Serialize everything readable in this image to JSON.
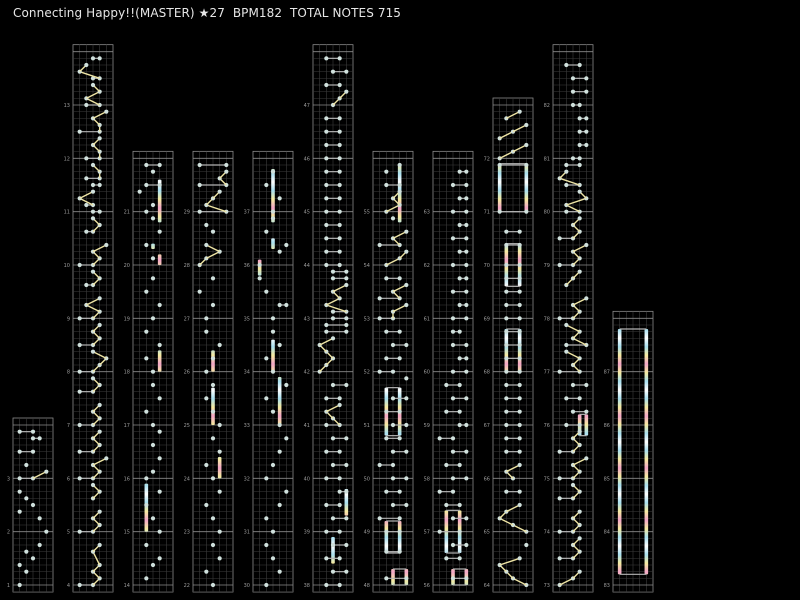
{
  "header": {
    "song": "Connecting Happy!!",
    "difficulty": "(MASTER)",
    "level": "★27",
    "bpm": "BPM182",
    "total_notes": "TOTAL NOTES 715"
  },
  "colors": {
    "background": "#000000",
    "grid": "#3c3c3c",
    "measure_line": "#8a8a8a",
    "note": "#cfe0dc",
    "double_line": "#b4b4b4",
    "slide_line": "#eee4a4",
    "hold_gradient": [
      "#f4a6c8",
      "#f6eba0",
      "#a8e0f0",
      "#ffffff"
    ]
  },
  "chart": {
    "lanes": 5,
    "columns": [
      {
        "first": 1,
        "last": 3
      },
      {
        "first": 4,
        "last": 13
      },
      {
        "first": 14,
        "last": 21
      },
      {
        "first": 22,
        "last": 29
      },
      {
        "first": 30,
        "last": 37
      },
      {
        "first": 38,
        "last": 47
      },
      {
        "first": 48,
        "last": 55
      },
      {
        "first": 56,
        "last": 63
      },
      {
        "first": 64,
        "last": 72
      },
      {
        "first": 73,
        "last": 82
      },
      {
        "first": 83,
        "last": 87
      }
    ],
    "measures": {
      "1": "1 . 2 1 3 2 4 .",
      "2": "5 . 4 1 3 2 1 .",
      "3": "13 ~5 2 . 13 . 34 13",
      "4": "13 ~4 ~3 ~4 . ~3 ~4 .",
      "5": "13 ~4 ~3 ~4 . 3 ~4 ~3",
      "6": "13 ~4 ~3 ~5 13 ~4 ~3 ~4",
      "7": "13 ~4 ~3 ~4 . 13 ~4 ~3",
      "8": "13 ~4 ~5 ~3 13 ~4 ~3 ~4",
      "9": "13 ~4 ~2 ~4 . 23 ~4 ~3",
      "10": "13 ~4 ~3 ~5 . 23 ~4 ~3",
      "11": "34 23 ~1 ~3 34 24 ~4 ~3",
      "12": "24 ~4 ~3 ~4 14 ~4 ~3 ~5",
      "13": "24 ~2 ~4 ~3 34 ~1 ~2 34",
      "14": ". 2 . 3 4 . 2 .",
      "15": "4 . 3 . 2 . 4 .",
      "16": "2 3 . 4 . 3 . 4",
      "17": "3 . 2 . 4 . 3 .",
      "18": "3 . 2 . 4 . 2 .",
      "19": "3 . 4 . 2 . 3 .",
      "20": ". 3 . 2 . 4 . 3",
      "21": "2 3 . 1 24 . 3 24",
      "22": "3 . 2 . 4 . 3 .",
      "23": "4 . 3 . 2 . 4 .",
      "24": "3 . 2 . 4 . 3 .",
      "25": "4 . 3 . 2 . 3 .",
      "26": "2 . 3 . 4 . 2 .",
      "27": "2 . 3 . 1 . 3 .",
      "28": "1 ~2 ~4 ~2 . 3 2 .",
      "29": "15 ~2 ~3 ~4 15 ~4 ~5 15",
      "30": "2 . 4 . 3 . 2 .",
      "31": "3 . 2 . 4 . 5 .",
      "32": "2 . 3 . 4 . 5 .",
      "33": "4 . 3 . 2 . 5 .",
      "34": "3 . 2 . 4 . 3 .",
      "35": "3 . 45 . 2 . 1 .",
      "36": "1 . 4 5 . 2 . 3",
      "37": "3 . 4 . 2 . 3 .",
      "38": "24 . 35 . 24 . 35 .",
      "39": "24 . 35 . 24 . 45 .",
      "40": "24 . 35 . 24 . 35 .",
      "41": "24 ~3 ~2 ~4 24 . 35 .",
      "42": "1 ~2 ~3 ~2 ~1 ~3 25 25",
      "43": "35 35 ~2 ~4 ~3 ~5 35 35",
      "44": "24 . 24 . 24 . 24 .",
      "45": "24 . 24 . 24 . 24 .",
      "46": "24 . 24 . 24 . 24 .",
      "47": "~3 ~4 ~5 24 . 35 . 24",
      "48": ". 25 . . . 24 . .",
      "49": "24 . 14 . 35 . 24 .",
      "50": "35 . 13 . 35 . 24 .",
      "51": "35 . 24 . 35 . . 5",
      "52": "13 . 24 . 35 . 24 .",
      "53": "13 ~3 ~5 14 ~3 ~5 24 .",
      "54": "2 ~4 ~5 14 ~3 ~5 . 3",
      "55": "2 ~4 ~3 ~4 24 . 2 4",
      "56": ". 35 . . 24 . 35 .",
      "57": "14 . 35 . 24 . 13 .",
      "58": "35 . 24 . 35 . 13 .",
      "59": "45 . 24 . 35 . 24 .",
      "60": "35 . 45 . 35 . 34 .",
      "61": "35 . 45 . 35 . 45 .",
      "62": "35 . 45 . 35 . 45 .",
      "63": "35 . 45 . 35 . 45 .",
      "64": "5 ~3 ~2 ~1 ~4 . 5 .",
      "65": "5 ~3 ~1 ~2 ~4 . 24 .",
      "66": "~3 ~2 ~4 . 24 . 24 .",
      "67": "24 . 24 . 24 . 24 .",
      "68": "24 . 24 . 24 . 24 .",
      "69": "24 . 24 . 24 . 24 .",
      "70": "24 . . 24 . 24 . .",
      "71": "15 . . . . . . 15",
      "72": "1 ~3 ~5 1 ~3 ~5 2 ~4",
      "73": "1 ~3 ~4 . 13 ~4 ~3 ~4",
      "74": "13 ~4 ~3 ~4 . 13 ~4 ~3",
      "75": "13 ~4 ~3 ~5 13 ~4 ~3 ~4",
      "76": "24 . 35 . 24 . 35 .",
      "77": "14 ~3 ~4 ~2 25 ~3 ~4 ~2",
      "78": "13 ~4 ~3 ~5 . 2 ~3 ~4",
      "79": "13 ~4 ~3 ~5 13 ~4 ~3 ~4",
      "80": "24 ~2 ~5 ~4 24 ~1 ~2 24",
      "81": "34 . 45 . 45 . 45 .",
      "82": "34 . 35 . 35 . 24 ."
    },
    "holds": [
      [
        4,
        18.0,
        18.4
      ],
      [
        2,
        15.0,
        15.9
      ],
      [
        4,
        20.0,
        20.2
      ],
      [
        3,
        20.3,
        20.4
      ],
      [
        4,
        20.8,
        21.6
      ],
      [
        3,
        25.0,
        25.7
      ],
      [
        4,
        24.0,
        24.4
      ],
      [
        3,
        26.0,
        26.4
      ],
      [
        4,
        33.0,
        33.9
      ],
      [
        3,
        34.0,
        34.6
      ],
      [
        1,
        35.8,
        36.1
      ],
      [
        3,
        36.3,
        36.5
      ],
      [
        3,
        36.8,
        37.8
      ],
      [
        3,
        38.4,
        38.9
      ],
      [
        5,
        39.3,
        39.8
      ],
      [
        3,
        48.0,
        48.3
      ],
      [
        5,
        48.0,
        48.3
      ],
      [
        2,
        48.6,
        49.2
      ],
      [
        4,
        48.6,
        49.2
      ],
      [
        2,
        50.8,
        51.7
      ],
      [
        4,
        50.8,
        51.7
      ],
      [
        4,
        54.8,
        55.9
      ],
      [
        3,
        56.0,
        56.3
      ],
      [
        5,
        56.0,
        56.3
      ],
      [
        2,
        56.6,
        57.4
      ],
      [
        4,
        56.6,
        57.4
      ],
      [
        1,
        71.0,
        71.9
      ],
      [
        5,
        71.0,
        71.9
      ],
      [
        2,
        68.0,
        68.8
      ],
      [
        4,
        68.0,
        68.8
      ],
      [
        2,
        69.6,
        70.4
      ],
      [
        4,
        69.6,
        70.4
      ],
      [
        4,
        75.8,
        76.2
      ],
      [
        5,
        75.8,
        76.2
      ],
      [
        1,
        83.2,
        87.8
      ],
      [
        5,
        83.2,
        87.8
      ]
    ]
  }
}
